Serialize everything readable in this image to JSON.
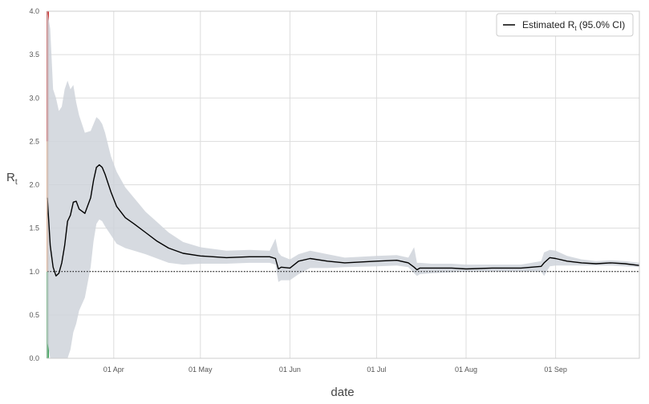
{
  "chart_data": {
    "type": "line",
    "title": "",
    "xlabel": "date",
    "ylabel": "R",
    "ylabel_subscript": "t",
    "legend": {
      "placement": "top-right",
      "entry_prefix": "Estimated R",
      "entry_subscript": "t",
      "entry_suffix": " (95.0% CI)"
    },
    "grid": true,
    "reference_line": {
      "y": 1.0,
      "style": "dotted",
      "color": "#000000"
    },
    "xlim": [
      "2020-03-09",
      "2020-09-30"
    ],
    "ylim": [
      0,
      4.0
    ],
    "yticks": [
      {
        "value": 0.0,
        "label": "0.0"
      },
      {
        "value": 0.5,
        "label": "0.5"
      },
      {
        "value": 1.0,
        "label": "1.0"
      },
      {
        "value": 1.5,
        "label": "1.5"
      },
      {
        "value": 2.0,
        "label": "2.0"
      },
      {
        "value": 2.5,
        "label": "2.5"
      },
      {
        "value": 3.0,
        "label": "3.0"
      },
      {
        "value": 3.5,
        "label": "3.5"
      },
      {
        "value": 4.0,
        "label": "4.0"
      }
    ],
    "xticks": [
      {
        "date": "2020-04-01",
        "label": "01 Apr"
      },
      {
        "date": "2020-05-01",
        "label": "01 May"
      },
      {
        "date": "2020-06-01",
        "label": "01 Jun"
      },
      {
        "date": "2020-07-01",
        "label": "01 Jul"
      },
      {
        "date": "2020-08-01",
        "label": "01 Aug"
      },
      {
        "date": "2020-09-01",
        "label": "01 Sep"
      }
    ],
    "color_bands": [
      {
        "from": 0.0,
        "to": 1.0,
        "color": "#3aa35a"
      },
      {
        "from": 1.0,
        "to": 2.5,
        "color": "#f0a070"
      },
      {
        "from": 2.5,
        "to": 4.0,
        "color": "#cc2a2a"
      }
    ],
    "colors": {
      "line": "#000000",
      "band": "#cfd4da",
      "grid": "#dddddd"
    },
    "series": [
      {
        "x": [
          "2020-03-09",
          "2020-03-10",
          "2020-03-11",
          "2020-03-12",
          "2020-03-13",
          "2020-03-14",
          "2020-03-15",
          "2020-03-16",
          "2020-03-17",
          "2020-03-18",
          "2020-03-19",
          "2020-03-20",
          "2020-03-22",
          "2020-03-24",
          "2020-03-25",
          "2020-03-26",
          "2020-03-27",
          "2020-03-28",
          "2020-03-29",
          "2020-03-31",
          "2020-04-02",
          "2020-04-05",
          "2020-04-08",
          "2020-04-12",
          "2020-04-16",
          "2020-04-20",
          "2020-04-25",
          "2020-05-01",
          "2020-05-10",
          "2020-05-18",
          "2020-05-25",
          "2020-05-27",
          "2020-05-28",
          "2020-05-29",
          "2020-06-01",
          "2020-06-04",
          "2020-06-08",
          "2020-06-14",
          "2020-06-20",
          "2020-07-01",
          "2020-07-08",
          "2020-07-12",
          "2020-07-14",
          "2020-07-15",
          "2020-07-16",
          "2020-07-20",
          "2020-07-27",
          "2020-08-01",
          "2020-08-10",
          "2020-08-20",
          "2020-08-27",
          "2020-08-28",
          "2020-08-30",
          "2020-09-01",
          "2020-09-05",
          "2020-09-10",
          "2020-09-15",
          "2020-09-20",
          "2020-09-25",
          "2020-09-30"
        ],
        "y": [
          1.85,
          1.3,
          1.05,
          0.95,
          0.98,
          1.1,
          1.3,
          1.58,
          1.65,
          1.8,
          1.81,
          1.72,
          1.67,
          1.85,
          2.05,
          2.2,
          2.23,
          2.2,
          2.12,
          1.92,
          1.75,
          1.62,
          1.55,
          1.45,
          1.35,
          1.27,
          1.21,
          1.18,
          1.16,
          1.17,
          1.17,
          1.15,
          1.03,
          1.05,
          1.04,
          1.12,
          1.15,
          1.12,
          1.1,
          1.12,
          1.13,
          1.1,
          1.05,
          1.02,
          1.04,
          1.04,
          1.04,
          1.03,
          1.04,
          1.04,
          1.06,
          1.1,
          1.16,
          1.15,
          1.12,
          1.1,
          1.09,
          1.1,
          1.09,
          1.07
        ],
        "lower": [
          0.2,
          0.0,
          0.0,
          0.0,
          0.0,
          0.0,
          0.0,
          0.0,
          0.1,
          0.3,
          0.4,
          0.55,
          0.7,
          1.05,
          1.35,
          1.55,
          1.6,
          1.58,
          1.52,
          1.42,
          1.32,
          1.27,
          1.24,
          1.2,
          1.15,
          1.1,
          1.08,
          1.09,
          1.09,
          1.1,
          1.1,
          1.08,
          0.88,
          0.9,
          0.9,
          0.97,
          1.04,
          1.04,
          1.05,
          1.06,
          1.07,
          1.05,
          0.98,
          0.95,
          0.97,
          0.98,
          0.99,
          1.0,
          1.0,
          1.0,
          1.0,
          0.95,
          1.06,
          1.07,
          1.07,
          1.07,
          1.07,
          1.07,
          1.06,
          1.05
        ],
        "upper": [
          4.0,
          3.8,
          3.1,
          3.0,
          2.85,
          2.9,
          3.1,
          3.2,
          3.1,
          3.15,
          2.95,
          2.8,
          2.6,
          2.62,
          2.7,
          2.78,
          2.75,
          2.7,
          2.6,
          2.33,
          2.15,
          1.97,
          1.85,
          1.69,
          1.57,
          1.45,
          1.34,
          1.28,
          1.24,
          1.25,
          1.24,
          1.38,
          1.22,
          1.18,
          1.14,
          1.2,
          1.24,
          1.2,
          1.16,
          1.18,
          1.19,
          1.16,
          1.28,
          1.1,
          1.1,
          1.09,
          1.09,
          1.08,
          1.08,
          1.08,
          1.12,
          1.22,
          1.25,
          1.24,
          1.18,
          1.14,
          1.12,
          1.13,
          1.12,
          1.1
        ]
      }
    ]
  }
}
